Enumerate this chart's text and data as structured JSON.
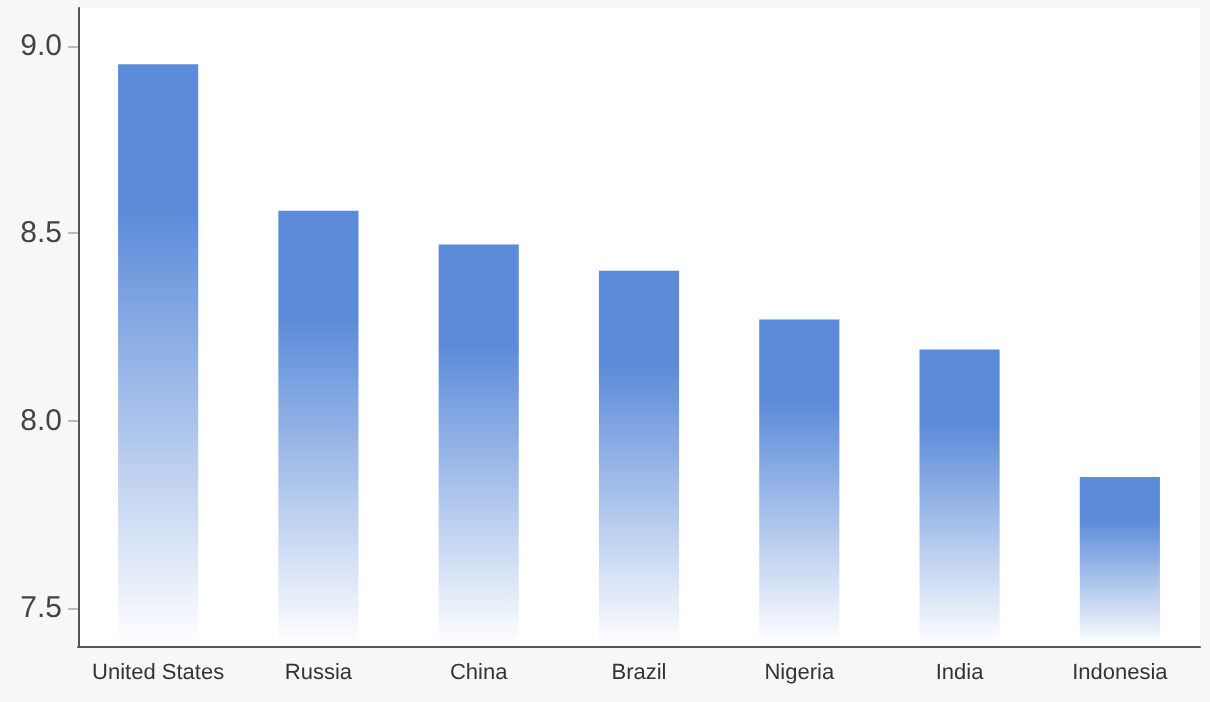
{
  "chart_data": {
    "type": "bar",
    "categories": [
      "United States",
      "Russia",
      "China",
      "Brazil",
      "Nigeria",
      "India",
      "Indonesia"
    ],
    "values": [
      8.95,
      8.56,
      8.47,
      8.4,
      8.27,
      8.19,
      7.85
    ],
    "color": "#5b8bd9",
    "ylim": [
      7.4,
      9.1
    ],
    "yticks": [
      {
        "value": 7.5,
        "label": "7.5"
      },
      {
        "value": 8.0,
        "label": "8.0"
      },
      {
        "value": 8.5,
        "label": "8.5"
      },
      {
        "value": 9.0,
        "label": "9.0"
      }
    ],
    "grid": false
  }
}
